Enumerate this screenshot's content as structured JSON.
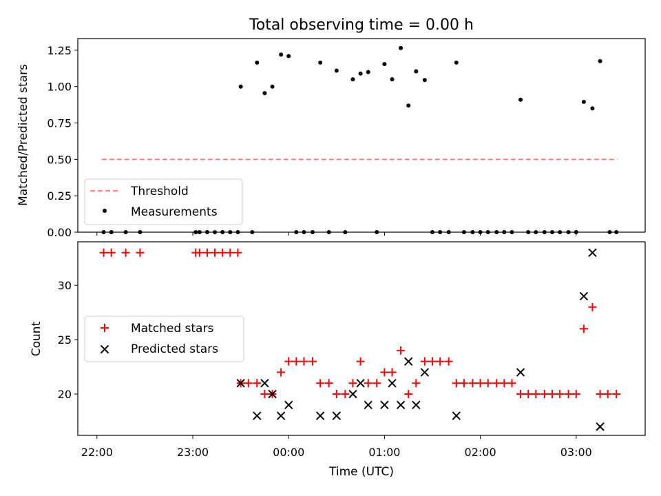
{
  "chart_data": [
    {
      "type": "scatter",
      "title": "Total observing time = 0.00 h",
      "xlabel": "",
      "ylabel": "Matched/Predicted stars",
      "xlim": [
        -0.2,
        5.72
      ],
      "ylim": [
        0.0,
        1.33
      ],
      "yticks": [
        0.0,
        0.25,
        0.5,
        0.75,
        1.0,
        1.25
      ],
      "ytick_labels": [
        "0.00",
        "0.25",
        "0.50",
        "0.75",
        "1.00",
        "1.25"
      ],
      "x_tick_positions": [
        0,
        1,
        2,
        3,
        4,
        5
      ],
      "legend": {
        "position": "lower-left",
        "entries": [
          "Threshold",
          "Measurements"
        ]
      },
      "series": [
        {
          "name": "Threshold",
          "style": "dashed-line",
          "color": "#ff7f7f",
          "x": [
            0.05,
            5.43
          ],
          "y": [
            0.5,
            0.5
          ]
        },
        {
          "name": "Measurements",
          "style": "dot",
          "color": "#000000",
          "points": [
            [
              0.07,
              0
            ],
            [
              0.15,
              0
            ],
            [
              0.3,
              0
            ],
            [
              0.45,
              0
            ],
            [
              1.03,
              0
            ],
            [
              1.07,
              0
            ],
            [
              1.15,
              0
            ],
            [
              1.23,
              0
            ],
            [
              1.31,
              0
            ],
            [
              1.39,
              0
            ],
            [
              1.47,
              0
            ],
            [
              1.62,
              0
            ],
            [
              1.5,
              1.0
            ],
            [
              1.67,
              1.165
            ],
            [
              1.75,
              0.955
            ],
            [
              1.83,
              1.0
            ],
            [
              1.92,
              1.22
            ],
            [
              2.0,
              1.21
            ],
            [
              2.08,
              0
            ],
            [
              2.16,
              0
            ],
            [
              2.25,
              0
            ],
            [
              2.42,
              0
            ],
            [
              2.59,
              0
            ],
            [
              2.92,
              0
            ],
            [
              2.33,
              1.165
            ],
            [
              2.5,
              1.11
            ],
            [
              2.67,
              1.05
            ],
            [
              2.75,
              1.09
            ],
            [
              2.83,
              1.1
            ],
            [
              3.0,
              1.155
            ],
            [
              3.08,
              1.05
            ],
            [
              3.17,
              1.265
            ],
            [
              3.25,
              0.87
            ],
            [
              3.33,
              1.105
            ],
            [
              3.42,
              1.045
            ],
            [
              3.75,
              1.165
            ],
            [
              4.42,
              0.91
            ],
            [
              5.08,
              0.895
            ],
            [
              5.17,
              0.85
            ],
            [
              5.25,
              1.175
            ],
            [
              3.5,
              0
            ],
            [
              3.58,
              0
            ],
            [
              3.67,
              0
            ],
            [
              3.83,
              0
            ],
            [
              3.92,
              0
            ],
            [
              4.0,
              0
            ],
            [
              4.08,
              0
            ],
            [
              4.17,
              0
            ],
            [
              4.25,
              0
            ],
            [
              4.33,
              0
            ],
            [
              4.5,
              0
            ],
            [
              4.58,
              0
            ],
            [
              4.67,
              0
            ],
            [
              4.75,
              0
            ],
            [
              4.83,
              0
            ],
            [
              4.92,
              0
            ],
            [
              5.0,
              0
            ],
            [
              5.35,
              0
            ],
            [
              5.42,
              0
            ]
          ]
        }
      ]
    },
    {
      "type": "scatter",
      "title": "",
      "xlabel": "Time (UTC)",
      "ylabel": "Count",
      "xlim": [
        -0.2,
        5.72
      ],
      "ylim": [
        16.2,
        34.0
      ],
      "yticks": [
        20,
        25,
        30
      ],
      "ytick_labels": [
        "20",
        "25",
        "30"
      ],
      "x_tick_positions": [
        0,
        1,
        2,
        3,
        4,
        5
      ],
      "x_tick_labels": [
        "22:00",
        "23:00",
        "00:00",
        "01:00",
        "02:00",
        "03:00"
      ],
      "legend": {
        "position": "center-left",
        "entries": [
          "Matched stars",
          "Predicted stars"
        ]
      },
      "series": [
        {
          "name": "Matched stars",
          "marker": "plus",
          "color": "#ff0000",
          "points": [
            [
              0.07,
              33
            ],
            [
              0.15,
              33
            ],
            [
              0.3,
              33
            ],
            [
              0.45,
              33
            ],
            [
              1.03,
              33
            ],
            [
              1.07,
              33
            ],
            [
              1.15,
              33
            ],
            [
              1.23,
              33
            ],
            [
              1.31,
              33
            ],
            [
              1.39,
              33
            ],
            [
              1.47,
              33
            ],
            [
              1.5,
              21
            ],
            [
              1.58,
              21
            ],
            [
              1.67,
              21
            ],
            [
              1.75,
              20
            ],
            [
              1.83,
              20
            ],
            [
              1.92,
              22
            ],
            [
              2.0,
              23
            ],
            [
              2.08,
              23
            ],
            [
              2.16,
              23
            ],
            [
              2.25,
              23
            ],
            [
              2.33,
              21
            ],
            [
              2.42,
              21
            ],
            [
              2.5,
              20
            ],
            [
              2.59,
              20
            ],
            [
              2.67,
              21
            ],
            [
              2.75,
              23
            ],
            [
              2.83,
              21
            ],
            [
              2.92,
              21
            ],
            [
              3.0,
              22
            ],
            [
              3.08,
              22
            ],
            [
              3.17,
              24
            ],
            [
              3.25,
              20
            ],
            [
              3.33,
              21
            ],
            [
              3.42,
              23
            ],
            [
              3.5,
              23
            ],
            [
              3.58,
              23
            ],
            [
              3.67,
              23
            ],
            [
              3.75,
              21
            ],
            [
              3.83,
              21
            ],
            [
              3.92,
              21
            ],
            [
              4.0,
              21
            ],
            [
              4.08,
              21
            ],
            [
              4.17,
              21
            ],
            [
              4.25,
              21
            ],
            [
              4.33,
              21
            ],
            [
              4.42,
              20
            ],
            [
              4.5,
              20
            ],
            [
              4.58,
              20
            ],
            [
              4.67,
              20
            ],
            [
              4.75,
              20
            ],
            [
              4.83,
              20
            ],
            [
              4.92,
              20
            ],
            [
              5.0,
              20
            ],
            [
              5.08,
              26
            ],
            [
              5.17,
              28
            ],
            [
              5.25,
              20
            ],
            [
              5.33,
              20
            ],
            [
              5.42,
              20
            ]
          ]
        },
        {
          "name": "Predicted stars",
          "marker": "x",
          "color": "#000000",
          "points": [
            [
              1.5,
              21
            ],
            [
              1.67,
              18
            ],
            [
              1.75,
              21
            ],
            [
              1.83,
              20
            ],
            [
              1.92,
              18
            ],
            [
              2.0,
              19
            ],
            [
              2.33,
              18
            ],
            [
              2.5,
              18
            ],
            [
              2.67,
              20
            ],
            [
              2.75,
              21
            ],
            [
              2.83,
              19
            ],
            [
              3.0,
              19
            ],
            [
              3.08,
              21
            ],
            [
              3.17,
              19
            ],
            [
              3.25,
              23
            ],
            [
              3.33,
              19
            ],
            [
              3.42,
              22
            ],
            [
              3.75,
              18
            ],
            [
              4.42,
              22
            ],
            [
              5.08,
              29
            ],
            [
              5.17,
              33
            ],
            [
              5.25,
              17
            ]
          ]
        }
      ]
    }
  ]
}
